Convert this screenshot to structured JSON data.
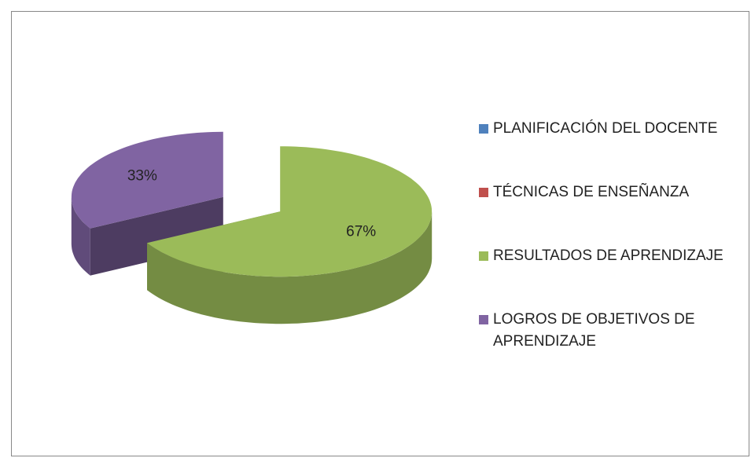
{
  "chart_data": {
    "type": "pie",
    "categories": [
      "PLANIFICACIÓN DEL DOCENTE",
      "TÉCNICAS DE ENSEÑANZA",
      "RESULTADOS DE APRENDIZAJE",
      "LOGROS DE OBJETIVOS DE APRENDIZAJE"
    ],
    "values": [
      0,
      0,
      67,
      33
    ],
    "value_labels": [
      null,
      null,
      "67%",
      "33%"
    ],
    "colors": [
      "#4f81bd",
      "#c0504d",
      "#9bbb59",
      "#8064a2"
    ],
    "legend": "right"
  }
}
